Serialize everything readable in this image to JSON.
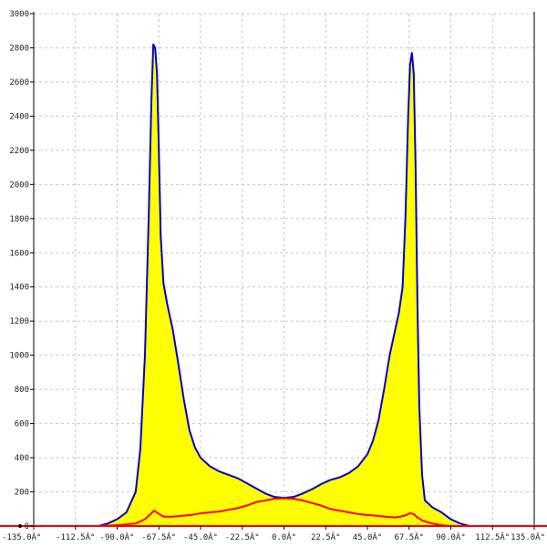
{
  "chart_data": {
    "type": "area",
    "title": "",
    "xlabel": "",
    "ylabel": "",
    "xlim": [
      -135,
      135
    ],
    "ylim": [
      0,
      3000
    ],
    "x_ticks": [
      -135,
      -112.5,
      -90,
      -67.5,
      -45,
      -22.5,
      0,
      22.5,
      45,
      67.5,
      90,
      112.5,
      135
    ],
    "x_tick_labels": [
      "-135.0Â°",
      "-112.5Â°",
      "-90.0Â°",
      "-67.5Â°",
      "-45.0Â°",
      "-22.5Â°",
      "0.0Â°",
      "22.5Â°",
      "45.0Â°",
      "67.5Â°",
      "90.0Â°",
      "112.5Â°",
      "135.0Â°"
    ],
    "y_ticks": [
      0,
      200,
      400,
      600,
      800,
      1000,
      1200,
      1400,
      1600,
      1800,
      2000,
      2200,
      2400,
      2600,
      2800,
      3000
    ],
    "y_tick_labels": [
      "0",
      "200",
      "400",
      "600",
      "800",
      "1000",
      "1200",
      "1400",
      "1600",
      "1800",
      "2000",
      "2200",
      "2400",
      "2600",
      "2800",
      "3000"
    ],
    "grid": true,
    "series": [
      {
        "color": "#0000cc",
        "fill": "#ffff00",
        "points": [
          [
            -100,
            0
          ],
          [
            -95,
            15
          ],
          [
            -90,
            40
          ],
          [
            -85,
            80
          ],
          [
            -80,
            200
          ],
          [
            -77.5,
            450
          ],
          [
            -75,
            1000
          ],
          [
            -73,
            1800
          ],
          [
            -71.5,
            2500
          ],
          [
            -70.5,
            2820
          ],
          [
            -69.5,
            2800
          ],
          [
            -68.5,
            2650
          ],
          [
            -67.5,
            2200
          ],
          [
            -66.5,
            1700
          ],
          [
            -65,
            1420
          ],
          [
            -63,
            1300
          ],
          [
            -60,
            1150
          ],
          [
            -57,
            950
          ],
          [
            -54,
            740
          ],
          [
            -51,
            560
          ],
          [
            -48,
            460
          ],
          [
            -45,
            400
          ],
          [
            -40,
            350
          ],
          [
            -35,
            320
          ],
          [
            -30,
            300
          ],
          [
            -25,
            280
          ],
          [
            -20,
            250
          ],
          [
            -15,
            220
          ],
          [
            -10,
            190
          ],
          [
            -5,
            170
          ],
          [
            0,
            165
          ],
          [
            5,
            170
          ],
          [
            10,
            190
          ],
          [
            15,
            215
          ],
          [
            20,
            245
          ],
          [
            25,
            270
          ],
          [
            30,
            285
          ],
          [
            35,
            310
          ],
          [
            40,
            350
          ],
          [
            45,
            420
          ],
          [
            48,
            500
          ],
          [
            51,
            620
          ],
          [
            54,
            800
          ],
          [
            57,
            1000
          ],
          [
            60,
            1150
          ],
          [
            62,
            1250
          ],
          [
            64,
            1400
          ],
          [
            65.5,
            1800
          ],
          [
            67,
            2400
          ],
          [
            68,
            2700
          ],
          [
            69,
            2770
          ],
          [
            70,
            2650
          ],
          [
            71,
            2100
          ],
          [
            72,
            1300
          ],
          [
            73,
            700
          ],
          [
            74.5,
            300
          ],
          [
            76,
            150
          ],
          [
            80,
            110
          ],
          [
            85,
            80
          ],
          [
            90,
            40
          ],
          [
            95,
            15
          ],
          [
            100,
            0
          ]
        ]
      },
      {
        "color": "#ff0000",
        "fill": "none",
        "points": [
          [
            -135,
            0
          ],
          [
            -100,
            0
          ],
          [
            -90,
            5
          ],
          [
            -80,
            15
          ],
          [
            -75,
            40
          ],
          [
            -72,
            70
          ],
          [
            -70,
            90
          ],
          [
            -68,
            75
          ],
          [
            -65,
            55
          ],
          [
            -60,
            55
          ],
          [
            -55,
            60
          ],
          [
            -50,
            65
          ],
          [
            -45,
            75
          ],
          [
            -40,
            80
          ],
          [
            -35,
            85
          ],
          [
            -30,
            95
          ],
          [
            -25,
            105
          ],
          [
            -20,
            120
          ],
          [
            -15,
            140
          ],
          [
            -10,
            150
          ],
          [
            -5,
            160
          ],
          [
            0,
            162
          ],
          [
            5,
            160
          ],
          [
            10,
            150
          ],
          [
            15,
            135
          ],
          [
            20,
            120
          ],
          [
            25,
            100
          ],
          [
            30,
            90
          ],
          [
            35,
            80
          ],
          [
            40,
            70
          ],
          [
            45,
            65
          ],
          [
            50,
            60
          ],
          [
            55,
            55
          ],
          [
            60,
            50
          ],
          [
            65,
            60
          ],
          [
            68,
            75
          ],
          [
            70,
            70
          ],
          [
            72,
            50
          ],
          [
            75,
            30
          ],
          [
            80,
            15
          ],
          [
            85,
            5
          ],
          [
            90,
            0
          ],
          [
            135,
            0
          ]
        ]
      }
    ],
    "baseline_color": "#ff0000"
  }
}
